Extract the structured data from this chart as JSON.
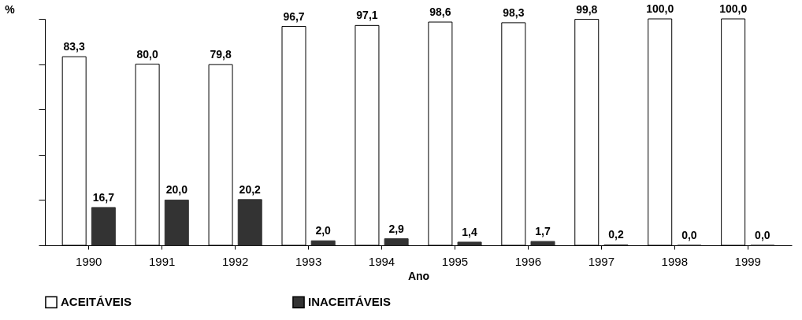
{
  "chart_data": {
    "type": "bar",
    "xlabel": "Ano",
    "ylabel": "%",
    "categories": [
      "1990",
      "1991",
      "1992",
      "1993",
      "1994",
      "1995",
      "1996",
      "1997",
      "1998",
      "1999"
    ],
    "series": [
      {
        "name": "ACEITÁVEIS",
        "color": "#ffffff",
        "values": [
          83.3,
          80.0,
          79.8,
          96.7,
          97.1,
          98.6,
          98.3,
          99.8,
          100.0,
          100.0
        ],
        "value_labels": [
          "83,3",
          "80,0",
          "79,8",
          "96,7",
          "97,1",
          "98,6",
          "98,3",
          "99,8",
          "100,0",
          "100,0"
        ]
      },
      {
        "name": "INACEITÁVEIS",
        "color": "#333333",
        "values": [
          16.7,
          20.0,
          20.2,
          2.0,
          2.9,
          1.4,
          1.7,
          0.2,
          0.0,
          0.0
        ],
        "value_labels": [
          "16,7",
          "20,0",
          "20,2",
          "2,0",
          "2,9",
          "1,4",
          "1,7",
          "0,2",
          "0,0",
          "0,0"
        ]
      }
    ],
    "tick_labels": "x",
    "grid": false,
    "legend": "bottom"
  }
}
